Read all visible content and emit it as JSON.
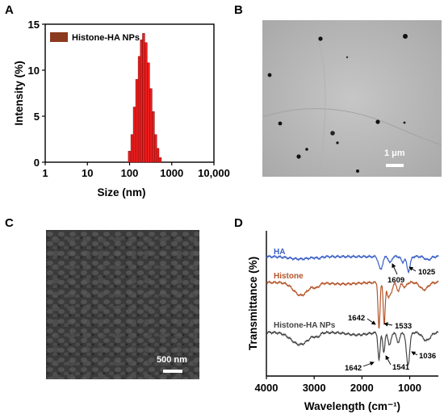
{
  "panels": {
    "a": {
      "letter": "A"
    },
    "b": {
      "letter": "B",
      "scale_label": "1 μm"
    },
    "c": {
      "letter": "C",
      "scale_label": "500 nm"
    },
    "d": {
      "letter": "D"
    }
  },
  "chart_data": [
    {
      "type": "bar",
      "panel": "A",
      "xlabel": "Size (nm)",
      "ylabel": "Intensity (%)",
      "x_scale": "log",
      "xlim": [
        1,
        10000
      ],
      "ylim": [
        0,
        15
      ],
      "x_ticks": [
        1,
        10,
        100,
        1000,
        10000
      ],
      "x_tick_labels": [
        "1",
        "10",
        "100",
        "1000",
        "10,000"
      ],
      "y_ticks": [
        0,
        5,
        10,
        15
      ],
      "legend": {
        "label": "Histone-HA NPs",
        "color": "#8b3a1e",
        "position": "top-left"
      },
      "series": [
        {
          "name": "Histone-HA NPs",
          "color": "#ee1c1c",
          "x": [
            100,
            115,
            130,
            150,
            170,
            190,
            215,
            245,
            280,
            320,
            365,
            415,
            470,
            530
          ],
          "values": [
            1.2,
            3.0,
            6.0,
            9.0,
            11.5,
            13.3,
            14.0,
            13.0,
            10.8,
            8.0,
            5.5,
            3.0,
            1.5,
            0.5
          ]
        }
      ]
    },
    {
      "type": "line",
      "panel": "D",
      "xlabel": "Wavelength (cm⁻¹)",
      "ylabel": "Transmittance (%)",
      "xlim": [
        4000,
        400
      ],
      "x_reversed": true,
      "x_ticks": [
        4000,
        3000,
        2000,
        1000
      ],
      "x_tick_labels": [
        "4000",
        "3000",
        "2000",
        "1000"
      ],
      "series": [
        {
          "name": "HA",
          "color": "#3a5fc7",
          "peaks": [
            1609,
            1025
          ]
        },
        {
          "name": "Histone",
          "color": "#b5552b",
          "peaks": [
            1642,
            1533
          ]
        },
        {
          "name": "Histone-HA NPs",
          "color": "#444444",
          "peaks": [
            1642,
            1541,
            1036
          ]
        }
      ],
      "annotations": [
        "1609",
        "1025",
        "1642",
        "1533",
        "1642",
        "1541",
        "1036"
      ]
    }
  ]
}
